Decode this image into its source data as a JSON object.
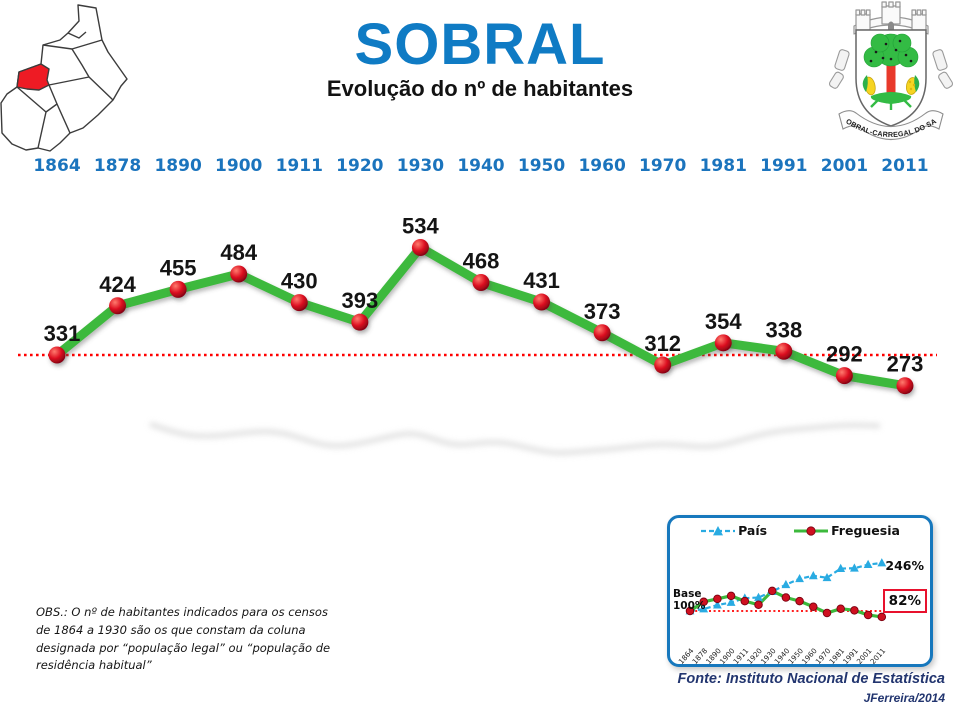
{
  "header": {
    "title": "SOBRAL",
    "subtitle": "Evolução do nº de habitantes",
    "title_color": "#0f7bc4",
    "crest_banner": "SOBRAL-CARREGAL DO SAL"
  },
  "chart_data": [
    {
      "type": "line",
      "name": "evolucao-habitantes",
      "title": "Evolução do nº de habitantes",
      "categories": [
        "1864",
        "1878",
        "1890",
        "1900",
        "1911",
        "1920",
        "1930",
        "1940",
        "1950",
        "1960",
        "1970",
        "1981",
        "1991",
        "2001",
        "2011"
      ],
      "series": [
        {
          "name": "Habitantes",
          "values": [
            331,
            424,
            455,
            484,
            430,
            393,
            534,
            468,
            431,
            373,
            312,
            354,
            338,
            292,
            273
          ]
        }
      ],
      "baseline_value": 331,
      "baseline_color": "#ff0000",
      "line_color": "#3cb93c",
      "marker_color": "#cf1020",
      "label_color": "#141414",
      "grid": false,
      "legend_position": "none"
    },
    {
      "type": "line",
      "name": "indice-crescimento",
      "base_label": "Base 100%",
      "categories": [
        "1864",
        "1878",
        "1890",
        "1900",
        "1911",
        "1920",
        "1930",
        "1940",
        "1950",
        "1960",
        "1970",
        "1981",
        "1991",
        "2001",
        "2011"
      ],
      "series": [
        {
          "name": "País",
          "marker": "triangle",
          "dashed": true,
          "color": "#29abe2",
          "end_label": "246%",
          "values": [
            100,
            106,
            118,
            126,
            139,
            141,
            159,
            180,
            198,
            207,
            201,
            229,
            230,
            241,
            246
          ]
        },
        {
          "name": "Freguesia",
          "marker": "circle",
          "dashed": false,
          "color": "#3cb93c",
          "marker_color": "#cf1020",
          "end_label": "82%",
          "values": [
            100,
            128,
            137,
            146,
            130,
            119,
            161,
            141,
            130,
            113,
            94,
            107,
            102,
            88,
            82
          ]
        }
      ],
      "baseline_value": 100,
      "baseline_color": "#ff0000",
      "grid": false,
      "legend_position": "top"
    }
  ],
  "obs_note": "OBS.: O nº de habitantes indicados para os censos de 1864 a 1930 são os que constam da coluna designada por “população legal” ou “população de residência habitual”",
  "footer": {
    "source": "Fonte: Instituto Nacional de Estatística",
    "credit": "JFerreira/2014"
  }
}
